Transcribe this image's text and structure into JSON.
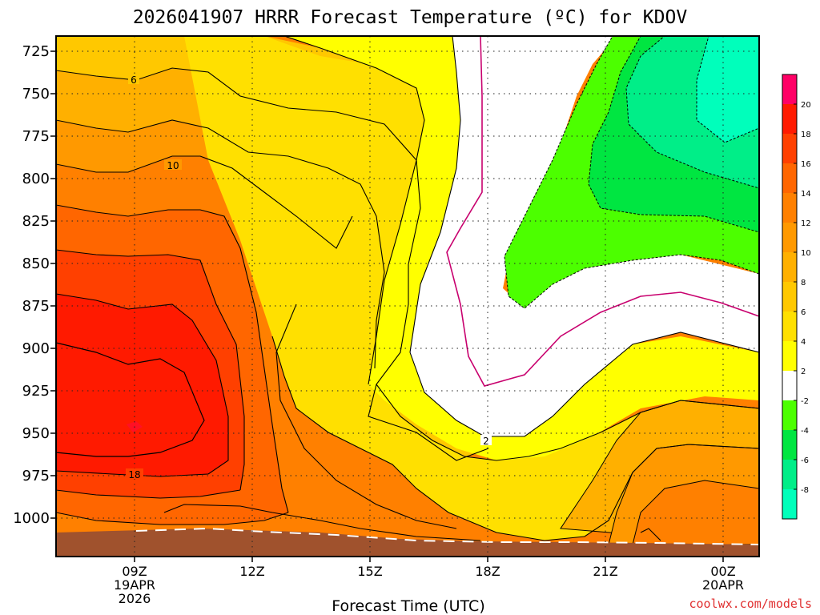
{
  "title": "2026041907 HRRR Forecast Temperature (ºC) for KDOV",
  "credit": "coolwx.com/models",
  "credit_color": "#e03030",
  "xlabel": "Forecast Time (UTC)",
  "chart_data": {
    "type": "heatmap",
    "title": "2026041907 HRRR Forecast Temperature (ºC) for KDOV",
    "xlabel": "Forecast Time (UTC)",
    "ylabel": "",
    "x_ticks": [
      {
        "lines": [
          "09Z",
          "19APR",
          "2026"
        ]
      },
      {
        "lines": [
          "12Z"
        ]
      },
      {
        "lines": [
          "15Z"
        ]
      },
      {
        "lines": [
          "18Z"
        ]
      },
      {
        "lines": [
          "21Z"
        ]
      },
      {
        "lines": [
          "00Z",
          "20APR"
        ]
      }
    ],
    "y_ticks": [
      "725",
      "750",
      "775",
      "800",
      "825",
      "850",
      "875",
      "900",
      "925",
      "950",
      "975",
      "1000"
    ],
    "colorbar": {
      "labels": [
        "20",
        "18",
        "16",
        "14",
        "12",
        "10",
        "8",
        "6",
        "4",
        "2",
        "-2",
        "-4",
        "-6",
        "-8"
      ],
      "colors": [
        "#ff0066",
        "#ff1a00",
        "#ff4000",
        "#ff6600",
        "#ff8000",
        "#ff9900",
        "#ffb000",
        "#ffc800",
        "#ffe000",
        "#ffff00",
        "#ffffff",
        "#4cff00",
        "#00e641",
        "#00ee88",
        "#00ffbb"
      ]
    },
    "contour_labels": [
      "6",
      "10",
      "18",
      "2"
    ],
    "grid": true,
    "colors": {
      "terrain": "#a0522d",
      "zero_contour": "#c8006e",
      "contour": "#000000"
    }
  }
}
